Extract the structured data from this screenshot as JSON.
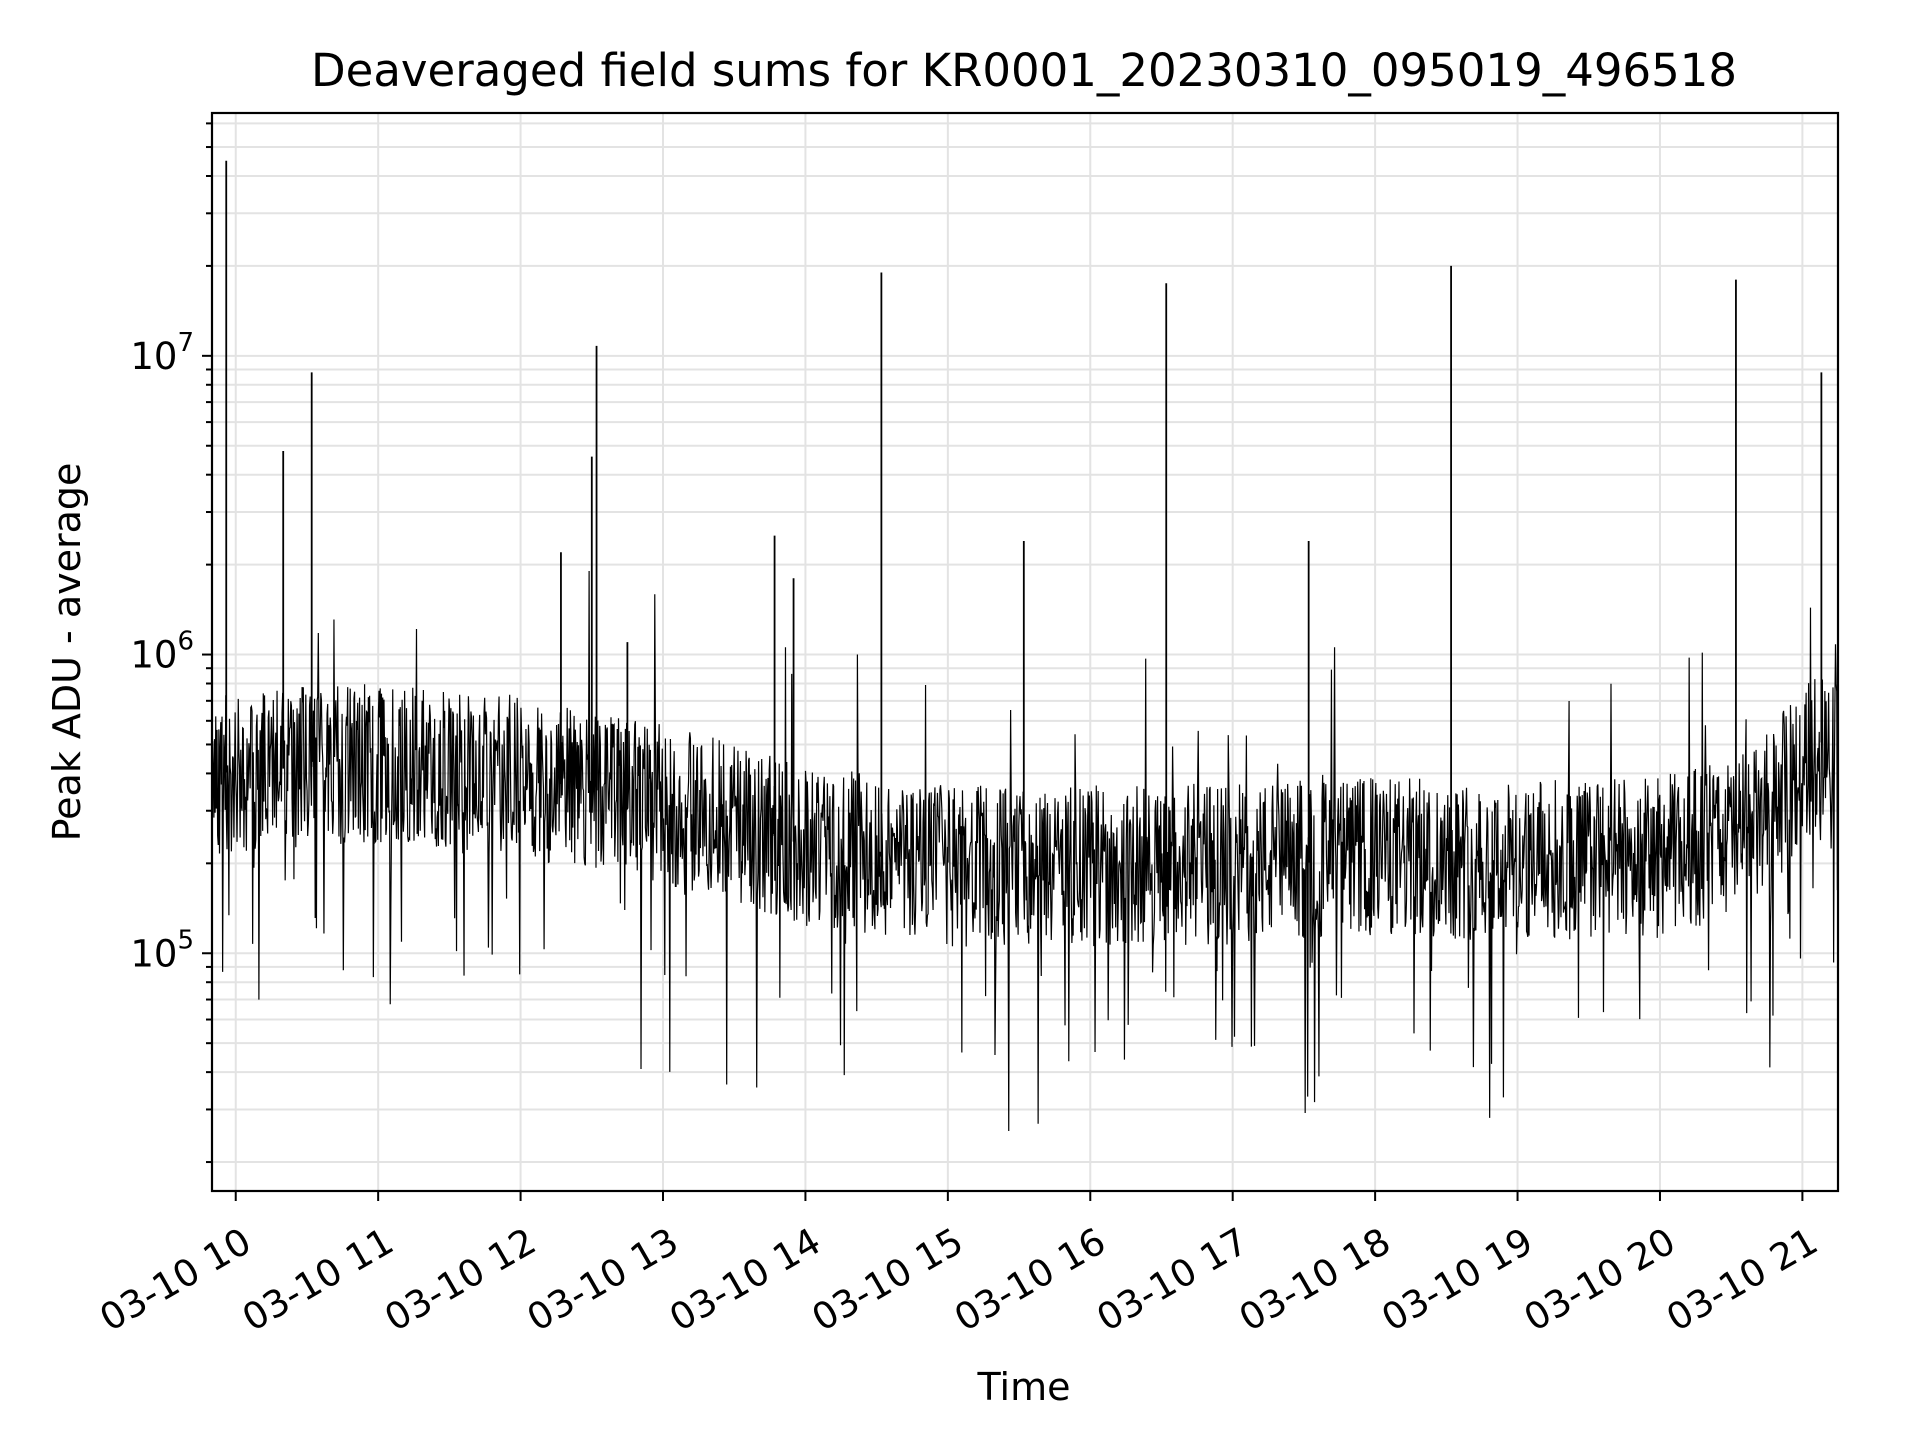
{
  "chart_data": {
    "type": "line",
    "title": "Deaveraged field sums for KR0001_20230310_095019_496518",
    "xlabel": "Time",
    "ylabel": "Peak ADU - average",
    "yscale": "log",
    "ylim": [
      16000,
      65000000
    ],
    "xlim": [
      "2023-03-10 09:50",
      "2023-03-10 21:15"
    ],
    "grid": true,
    "grid_minor": true,
    "x_ticks": [
      "03-10 10",
      "03-10 11",
      "03-10 12",
      "03-10 13",
      "03-10 14",
      "03-10 15",
      "03-10 16",
      "03-10 17",
      "03-10 18",
      "03-10 19",
      "03-10 20",
      "03-10 21"
    ],
    "y_ticks": [
      {
        "value": 100000,
        "base": "10",
        "exp": "5"
      },
      {
        "value": 1000000,
        "base": "10",
        "exp": "6"
      },
      {
        "value": 10000000,
        "base": "10",
        "exp": "7"
      }
    ],
    "baseline": {
      "x": [
        "2023-03-10 09:50",
        "2023-03-10 10:30",
        "2023-03-10 11:00",
        "2023-03-10 12:00",
        "2023-03-10 13:00",
        "2023-03-10 14:00",
        "2023-03-10 15:00",
        "2023-03-10 16:00",
        "2023-03-10 17:00",
        "2023-03-10 18:00",
        "2023-03-10 19:00",
        "2023-03-10 20:00",
        "2023-03-10 20:40",
        "2023-03-10 21:15"
      ],
      "y": [
        400000,
        420000,
        430000,
        390000,
        320000,
        230000,
        195000,
        195000,
        200000,
        210000,
        205000,
        210000,
        260000,
        600000
      ]
    },
    "spikes": [
      {
        "x": "2023-03-10 09:56",
        "y": 45000000
      },
      {
        "x": "2023-03-10 10:20",
        "y": 4800000
      },
      {
        "x": "2023-03-10 10:32",
        "y": 8800000
      },
      {
        "x": "2023-03-10 12:17",
        "y": 2200000
      },
      {
        "x": "2023-03-10 12:30",
        "y": 4600000
      },
      {
        "x": "2023-03-10 12:32",
        "y": 10800000
      },
      {
        "x": "2023-03-10 12:45",
        "y": 1100000
      },
      {
        "x": "2023-03-10 13:47",
        "y": 2500000
      },
      {
        "x": "2023-03-10 13:55",
        "y": 1800000
      },
      {
        "x": "2023-03-10 14:32",
        "y": 19000000
      },
      {
        "x": "2023-03-10 15:32",
        "y": 2400000
      },
      {
        "x": "2023-03-10 16:32",
        "y": 17500000
      },
      {
        "x": "2023-03-10 17:32",
        "y": 2400000
      },
      {
        "x": "2023-03-10 18:32",
        "y": 20000000
      },
      {
        "x": "2023-03-10 20:32",
        "y": 18000000
      },
      {
        "x": "2023-03-10 21:08",
        "y": 8800000
      }
    ]
  }
}
